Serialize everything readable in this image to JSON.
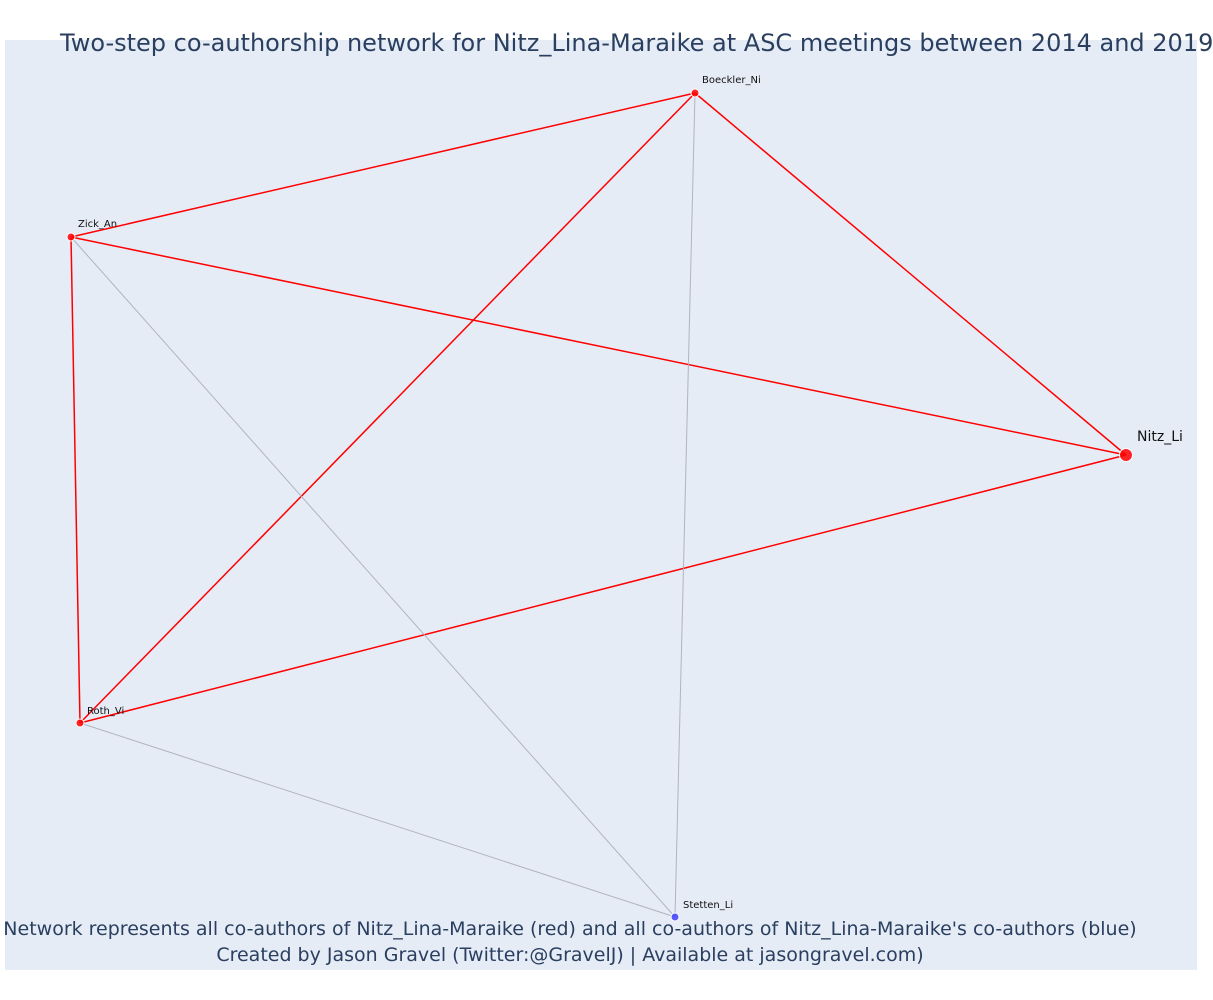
{
  "title": "Two-step co-authorship network for Nitz_Lina-Maraike at ASC meetings between 2014 and 2019",
  "caption": {
    "line1": "Network represents all co-authors of Nitz_Lina-Maraike (red) and all co-authors of Nitz_Lina-Maraike's co-authors (blue)",
    "line2": "Created by Jason Gravel (Twitter:@GravelJ) | Available at jasongravel.com)"
  },
  "colors": {
    "background": "#e5ecf6",
    "direct": "#ff0000",
    "indirect": "#4040ff",
    "secondary_edge": "#b0b4c0",
    "text": "#2a3f5f"
  },
  "nodes": [
    {
      "id": "Nitz_Li",
      "group": "focal"
    },
    {
      "id": "Boeckler_Ni",
      "group": "direct"
    },
    {
      "id": "Zick_An",
      "group": "direct"
    },
    {
      "id": "Roth_Vi",
      "group": "direct"
    },
    {
      "id": "Stetten_Li",
      "group": "indirect"
    }
  ],
  "edges": [
    {
      "source": "Nitz_Li",
      "target": "Boeckler_Ni",
      "type": "direct"
    },
    {
      "source": "Nitz_Li",
      "target": "Zick_An",
      "type": "direct"
    },
    {
      "source": "Nitz_Li",
      "target": "Roth_Vi",
      "type": "direct"
    },
    {
      "source": "Boeckler_Ni",
      "target": "Zick_An",
      "type": "direct"
    },
    {
      "source": "Boeckler_Ni",
      "target": "Roth_Vi",
      "type": "direct"
    },
    {
      "source": "Zick_An",
      "target": "Roth_Vi",
      "type": "direct"
    },
    {
      "source": "Boeckler_Ni",
      "target": "Stetten_Li",
      "type": "secondary"
    },
    {
      "source": "Zick_An",
      "target": "Stetten_Li",
      "type": "secondary"
    },
    {
      "source": "Roth_Vi",
      "target": "Stetten_Li",
      "type": "secondary"
    }
  ]
}
